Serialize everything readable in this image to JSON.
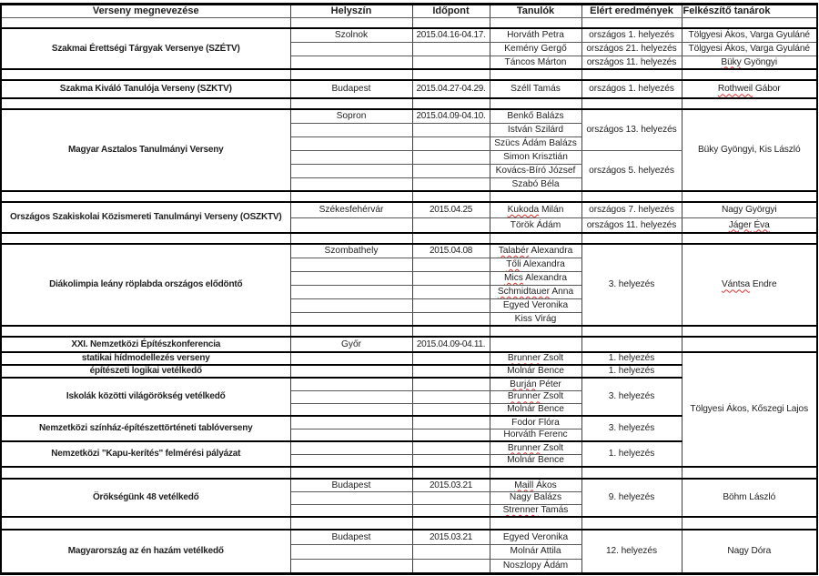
{
  "columns": [
    {
      "label": "Verseny megnevezése",
      "align": "center"
    },
    {
      "label": "Helyszín",
      "align": "center"
    },
    {
      "label": "Időpont",
      "align": "center"
    },
    {
      "label": "Tanulók",
      "align": "center"
    },
    {
      "label": "Elért eredmények",
      "align": "center"
    },
    {
      "label": "Felkészítő tanárok",
      "align": "left"
    }
  ],
  "spellcheck_color": "#e03131",
  "sections": [
    {
      "spacer": true,
      "thin": true
    },
    {
      "rows": [
        [
          {
            "t": "Szakmai Érettségi Tárgyak Versenye (SZÉTV)",
            "rs": 3
          },
          {
            "t": "Szolnok"
          },
          {
            "t": "2015.04.16-04.17."
          },
          {
            "t": "Horváth Petra"
          },
          {
            "t": "országos 1. helyezés"
          },
          {
            "t": "Tölgyesi Ákos, Varga Gyuláné"
          }
        ],
        [
          null,
          {
            "t": ""
          },
          {
            "t": ""
          },
          {
            "t": "Kemény Gergő"
          },
          {
            "t": "országos 21. helyezés"
          },
          {
            "t": "Tölgyesi Ákos, Varga Gyuláné"
          }
        ],
        [
          null,
          {
            "t": ""
          },
          {
            "t": ""
          },
          {
            "t": "Táncos Márton"
          },
          {
            "t": "országos 11. helyezés"
          },
          {
            "t": "Büky Gyöngyi",
            "sq": [
              "Büky"
            ]
          }
        ]
      ]
    },
    {
      "spacer": true
    },
    {
      "rows": [
        [
          {
            "t": "Szakma Kiváló Tanulója Verseny (SZKTV)"
          },
          {
            "t": "Budapest"
          },
          {
            "t": "2015.04.27-04.29."
          },
          {
            "t": "Széll Tamás"
          },
          {
            "t": "országos 1. helyezés"
          },
          {
            "t": "Rothweil Gábor",
            "sq": [
              "Rothweil"
            ]
          }
        ]
      ]
    },
    {
      "spacer": true
    },
    {
      "rows": [
        [
          {
            "t": "Magyar Asztalos Tanulmányi Verseny",
            "rs": 6
          },
          {
            "t": "Sopron"
          },
          {
            "t": "2015.04.09-04.10."
          },
          {
            "t": "Benkő Balázs"
          },
          {
            "t": "országos 13. helyezés",
            "rs": 3
          },
          {
            "t": "Büky Gyöngyi, Kis László",
            "rs": 6
          }
        ],
        [
          null,
          {
            "t": ""
          },
          {
            "t": ""
          },
          {
            "t": "István Szilárd"
          },
          null,
          null
        ],
        [
          null,
          {
            "t": ""
          },
          {
            "t": ""
          },
          {
            "t": "Szücs Ádám Balázs"
          },
          null,
          null
        ],
        [
          null,
          {
            "t": ""
          },
          {
            "t": ""
          },
          {
            "t": "Simon Krisztián"
          },
          {
            "t": "országos 5. helyezés",
            "rs": 3
          },
          null
        ],
        [
          null,
          {
            "t": ""
          },
          {
            "t": ""
          },
          {
            "t": "Kovács-Bíró József"
          },
          null,
          null
        ],
        [
          null,
          {
            "t": ""
          },
          {
            "t": ""
          },
          {
            "t": "Szabó Béla"
          },
          null,
          null
        ]
      ]
    },
    {
      "spacer": true
    },
    {
      "rows": [
        [
          {
            "t": "Országos Szakiskolai Közismereti Tanulmányi Verseny (OSZKTV)",
            "rs": 2
          },
          {
            "t": "Székesfehérvár"
          },
          {
            "t": "2015.04.25"
          },
          {
            "t": "Kukoda Milán",
            "sq": [
              "Kukoda"
            ]
          },
          {
            "t": "országos 7. helyezés"
          },
          {
            "t": "Nagy Györgyi"
          }
        ],
        [
          null,
          {
            "t": ""
          },
          {
            "t": ""
          },
          {
            "t": "Török Ádám"
          },
          {
            "t": "országos 11. helyezés"
          },
          {
            "t": "Jáger Éva",
            "sq": [
              "Jáger",
              "Éva"
            ]
          }
        ]
      ]
    },
    {
      "spacer": true
    },
    {
      "rows": [
        [
          {
            "t": "Diákolimpia leány röplabda országos elődöntő",
            "rs": 6
          },
          {
            "t": "Szombathely"
          },
          {
            "t": "2015.04.08"
          },
          {
            "t": "Talabér Alexandra",
            "sq": [
              "Talabér"
            ]
          },
          {
            "t": "3. helyezés",
            "rs": 6
          },
          {
            "t": "Vántsa Endre",
            "rs": 6,
            "sq": [
              "Vántsa"
            ]
          }
        ],
        [
          null,
          {
            "t": ""
          },
          {
            "t": ""
          },
          {
            "t": "Tőli Alexandra",
            "sq": [
              "Tőli"
            ]
          },
          null,
          null
        ],
        [
          null,
          {
            "t": ""
          },
          {
            "t": ""
          },
          {
            "t": "Mics Alexandra",
            "sq": [
              "Mics"
            ]
          },
          null,
          null
        ],
        [
          null,
          {
            "t": ""
          },
          {
            "t": ""
          },
          {
            "t": "Schmidtauer Anna",
            "sq": [
              "Schmidtauer"
            ]
          },
          null,
          null
        ],
        [
          null,
          {
            "t": ""
          },
          {
            "t": ""
          },
          {
            "t": "Egyed Veronika"
          },
          null,
          null
        ],
        [
          null,
          {
            "t": ""
          },
          {
            "t": ""
          },
          {
            "t": "Kiss Virág"
          },
          null,
          null
        ]
      ]
    },
    {
      "spacer": true
    },
    {
      "rows": [
        [
          {
            "t": "XXI. Nemzetközi Építészkonferencia"
          },
          {
            "t": "Győr"
          },
          {
            "t": "2015.04.09-04.11."
          },
          {
            "t": ""
          },
          {
            "t": ""
          },
          {
            "t": ""
          }
        ]
      ]
    },
    {
      "rows": [
        [
          {
            "t": "statikai hídmodellezés verseny"
          },
          {
            "t": ""
          },
          {
            "t": ""
          },
          {
            "t": "Brunner Zsolt",
            "sq": [
              "Brunner"
            ]
          },
          {
            "t": "1. helyezés"
          },
          {
            "t": "Tölgyesi Ákos, Kőszegi Lajos",
            "rs": 9
          }
        ]
      ]
    },
    {
      "rows": [
        [
          {
            "t": "építészeti logikai vetélkedő"
          },
          {
            "t": ""
          },
          {
            "t": ""
          },
          {
            "t": "Molnár Bence"
          },
          {
            "t": "1. helyezés"
          },
          null
        ]
      ]
    },
    {
      "rows": [
        [
          {
            "t": "Iskolák közötti világörökség vetélkedő",
            "rs": 3
          },
          {
            "t": ""
          },
          {
            "t": ""
          },
          {
            "t": "Burján Péter",
            "sq": [
              "Burján"
            ]
          },
          {
            "t": "3. helyezés",
            "rs": 3
          },
          null
        ],
        [
          null,
          {
            "t": ""
          },
          {
            "t": ""
          },
          {
            "t": "Brunner Zsolt",
            "sq": [
              "Brunner"
            ]
          },
          null,
          null
        ],
        [
          null,
          {
            "t": ""
          },
          {
            "t": ""
          },
          {
            "t": "Molnár Bence"
          },
          null,
          null
        ]
      ]
    },
    {
      "rows": [
        [
          {
            "t": "Nemzetközi színház-építészettörténeti tablóverseny",
            "rs": 2
          },
          {
            "t": ""
          },
          {
            "t": ""
          },
          {
            "t": "Fodor Flóra"
          },
          {
            "t": "3. helyezés",
            "rs": 2
          },
          null
        ],
        [
          null,
          {
            "t": ""
          },
          {
            "t": ""
          },
          {
            "t": "Horváth Ferenc"
          },
          null,
          null
        ]
      ]
    },
    {
      "rows": [
        [
          {
            "t": "Nemzetközi \"Kapu-kerítés\" felmérési pályázat",
            "rs": 2
          },
          {
            "t": ""
          },
          {
            "t": ""
          },
          {
            "t": "Brunner Zsolt",
            "sq": [
              "Brunner"
            ]
          },
          {
            "t": "1. helyezés",
            "rs": 2
          },
          null
        ],
        [
          null,
          {
            "t": ""
          },
          {
            "t": ""
          },
          {
            "t": "Molnár Bence"
          },
          null,
          null
        ]
      ]
    },
    {
      "spacer": true
    },
    {
      "rows": [
        [
          {
            "t": "Örökségünk 48 vetélkedő",
            "rs": 3
          },
          {
            "t": "Budapest"
          },
          {
            "t": "2015.03.21"
          },
          {
            "t": "Maill Ákos",
            "sq": [
              "Maill"
            ]
          },
          {
            "t": "9. helyezés",
            "rs": 3
          },
          {
            "t": "Böhm László",
            "rs": 3
          }
        ],
        [
          null,
          {
            "t": ""
          },
          {
            "t": ""
          },
          {
            "t": "Nagy Balázs"
          },
          null,
          null
        ],
        [
          null,
          {
            "t": ""
          },
          {
            "t": ""
          },
          {
            "t": "Strenner Tamás",
            "sq": [
              "Strenner"
            ]
          },
          null,
          null
        ]
      ]
    },
    {
      "spacer": true
    },
    {
      "rows": [
        [
          {
            "t": "Magyarország az én hazám vetélkedő",
            "rs": 3
          },
          {
            "t": "Budapest"
          },
          {
            "t": "2015.03.21"
          },
          {
            "t": "Egyed Veronika"
          },
          {
            "t": "12. helyezés",
            "rs": 3
          },
          {
            "t": "Nagy Dóra",
            "rs": 3
          }
        ],
        [
          null,
          {
            "t": ""
          },
          {
            "t": ""
          },
          {
            "t": "Molnár Attila"
          },
          null,
          null
        ],
        [
          null,
          {
            "t": ""
          },
          {
            "t": ""
          },
          {
            "t": "Noszlopy Ádám"
          },
          null,
          null
        ]
      ]
    }
  ]
}
